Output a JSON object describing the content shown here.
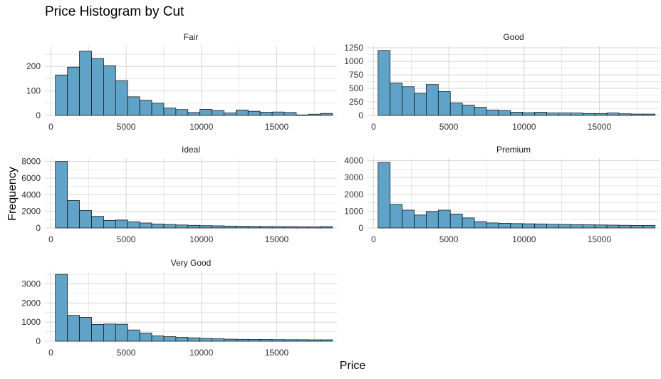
{
  "chart_data": {
    "type": "bar",
    "title": "Price Histogram by Cut",
    "xlabel": "Price",
    "ylabel": "Frequency",
    "bar_color": "#5fa3c8",
    "bar_outline": "#1a1a1a",
    "grid_color": "#d9d9d9",
    "x_ticks": [
      0,
      5000,
      10000,
      15000
    ],
    "xlim": [
      -400,
      19000
    ],
    "bin_start": 300,
    "bin_width": 800,
    "panels": [
      {
        "name": "Fair",
        "ylim": [
          0,
          285
        ],
        "y_ticks": [
          0,
          100,
          200
        ],
        "counts": [
          165,
          197,
          262,
          232,
          203,
          142,
          76,
          62,
          50,
          30,
          24,
          12,
          25,
          20,
          10,
          22,
          17,
          13,
          14,
          12,
          2,
          5,
          8
        ]
      },
      {
        "name": "Good",
        "ylim": [
          0,
          1290
        ],
        "y_ticks": [
          0,
          250,
          500,
          750,
          1000,
          1250
        ],
        "counts": [
          1200,
          600,
          530,
          410,
          570,
          440,
          230,
          190,
          150,
          100,
          90,
          60,
          50,
          60,
          45,
          45,
          45,
          35,
          35,
          45,
          30,
          25,
          25
        ]
      },
      {
        "name": "Ideal",
        "ylim": [
          0,
          8400
        ],
        "y_ticks": [
          0,
          2000,
          4000,
          6000,
          8000
        ],
        "counts": [
          8000,
          3300,
          2100,
          1400,
          900,
          950,
          750,
          600,
          480,
          420,
          360,
          320,
          280,
          260,
          230,
          210,
          190,
          180,
          170,
          160,
          150,
          140,
          170
        ]
      },
      {
        "name": "Premium",
        "ylim": [
          0,
          4150
        ],
        "y_ticks": [
          0,
          1000,
          2000,
          3000,
          4000
        ],
        "counts": [
          3900,
          1400,
          1060,
          770,
          980,
          1060,
          830,
          600,
          380,
          300,
          280,
          260,
          250,
          240,
          220,
          210,
          200,
          190,
          180,
          170,
          160,
          150,
          150
        ]
      },
      {
        "name": "Very Good",
        "ylim": [
          0,
          3650
        ],
        "y_ticks": [
          0,
          1000,
          2000,
          3000
        ],
        "counts": [
          3500,
          1350,
          1250,
          880,
          900,
          890,
          590,
          430,
          280,
          240,
          200,
          180,
          150,
          130,
          110,
          100,
          95,
          90,
          85,
          80,
          80,
          75,
          75
        ]
      }
    ]
  }
}
